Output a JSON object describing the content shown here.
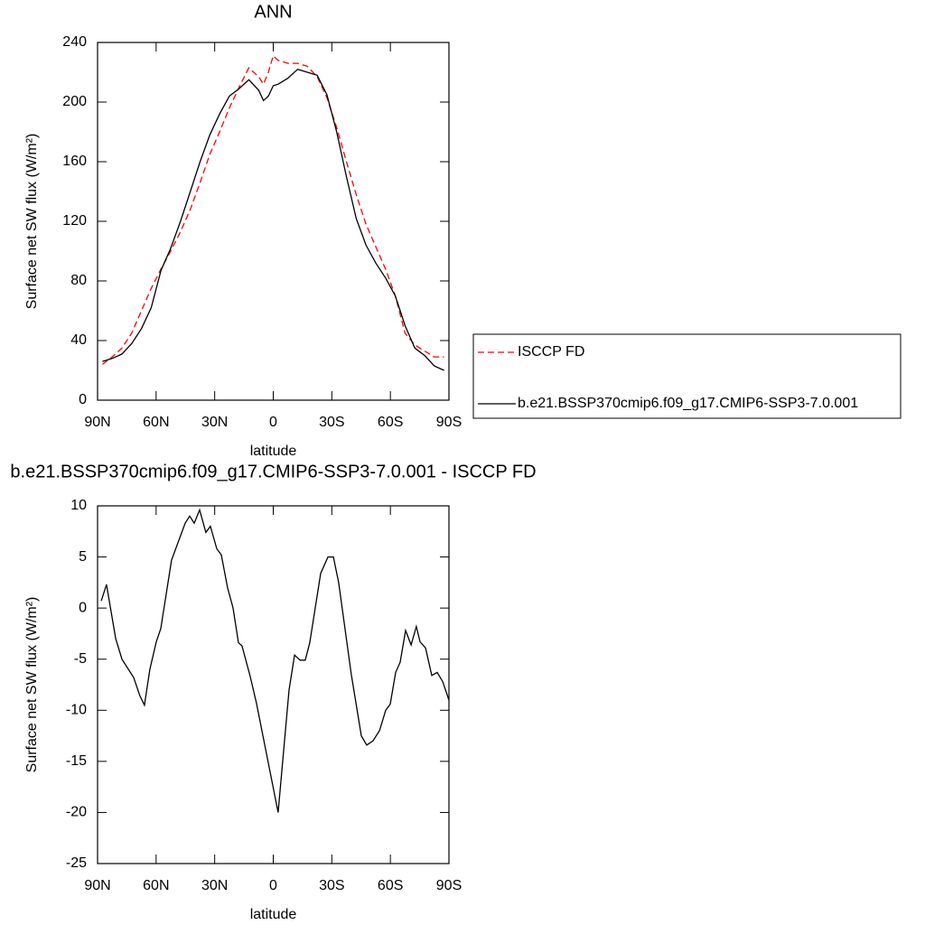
{
  "chart_data": [
    {
      "type": "line",
      "title": "ANN",
      "x_label": "latitude",
      "y_label": "Surface net SW flux (W/m²)",
      "xlim": [
        90,
        -90
      ],
      "xticks": [
        {
          "value": 90,
          "label": "90N"
        },
        {
          "value": 60,
          "label": "60N"
        },
        {
          "value": 30,
          "label": "30N"
        },
        0,
        {
          "value": -30,
          "label": "30S"
        },
        {
          "value": -60,
          "label": "60S"
        },
        {
          "value": -90,
          "label": "90S"
        }
      ],
      "ylim": [
        0,
        240
      ],
      "yticks": [
        0,
        40,
        80,
        120,
        160,
        200,
        240
      ],
      "legend": "outside-right",
      "series": [
        {
          "name": "ISCCP FD",
          "color": "#ff0000",
          "dash": true,
          "x": [
            87.5,
            82.5,
            77.5,
            72.5,
            67.5,
            62.5,
            57.5,
            52.5,
            47.5,
            42.5,
            37.5,
            32.5,
            27.5,
            22.5,
            17.5,
            12.5,
            7.5,
            5,
            2.5,
            0,
            -2.5,
            -7.5,
            -12.5,
            -17.5,
            -22.5,
            -27.5,
            -32.5,
            -37.5,
            -42.5,
            -47.5,
            -52.5,
            -57.5,
            -62.5,
            -67.5,
            -72.5,
            -77.5,
            -82.5,
            -87.5
          ],
          "values": [
            24,
            29,
            35,
            45,
            60,
            75,
            88,
            100,
            113,
            128,
            146,
            165,
            180,
            196,
            210,
            223,
            217,
            212,
            220,
            231,
            228,
            226,
            226,
            224,
            217,
            203,
            183,
            160,
            138,
            118,
            103,
            88,
            70,
            45,
            37,
            33,
            29,
            29
          ]
        },
        {
          "name": "b.e21.BSSP370cmip6.f09_g17.CMIP6-SSP3-7.0.001",
          "color": "#000000",
          "dash": false,
          "x": [
            87.5,
            82.5,
            77.5,
            72.5,
            67.5,
            62.5,
            57.5,
            52.5,
            47.5,
            42.5,
            37.5,
            32.5,
            27.5,
            22.5,
            17.5,
            12.5,
            7.5,
            5,
            2.5,
            0,
            -2.5,
            -7.5,
            -12.5,
            -17.5,
            -22.5,
            -27.5,
            -32.5,
            -37.5,
            -42.5,
            -47.5,
            -52.5,
            -57.5,
            -62.5,
            -67.5,
            -72.5,
            -77.5,
            -82.5,
            -87.5
          ],
          "values": [
            26,
            28,
            31,
            38,
            48,
            62,
            87,
            102,
            120,
            140,
            160,
            178,
            192,
            204,
            209,
            215,
            208,
            201,
            204,
            211,
            212,
            216,
            222,
            220,
            218,
            205,
            180,
            150,
            122,
            104,
            92,
            82,
            70,
            50,
            35,
            30,
            23,
            20
          ]
        }
      ]
    },
    {
      "type": "line",
      "title": "b.e21.BSSP370cmip6.f09_g17.CMIP6-SSP3-7.0.001 - ISCCP FD",
      "x_label": "latitude",
      "y_label": "Surface net SW flux (W/m²)",
      "xlim": [
        90,
        -90
      ],
      "xticks": [
        {
          "value": 90,
          "label": "90N"
        },
        {
          "value": 60,
          "label": "60N"
        },
        {
          "value": 30,
          "label": "30N"
        },
        0,
        {
          "value": -30,
          "label": "30S"
        },
        {
          "value": -60,
          "label": "60S"
        },
        {
          "value": -90,
          "label": "90S"
        }
      ],
      "ylim": [
        -25,
        10
      ],
      "yticks": [
        -25,
        -20,
        -15,
        -10,
        -5,
        0,
        5,
        10
      ],
      "series": [
        {
          "color": "#000000",
          "dash": false,
          "x": [
            88.1,
            85.4,
            80.7,
            77.5,
            71.5,
            68.3,
            66,
            63.2,
            59.9,
            57.6,
            52.1,
            45.1,
            42.8,
            40.5,
            37.7,
            34.5,
            32.2,
            28.9,
            26.6,
            23.4,
            20.6,
            17.8,
            16,
            11.8,
            8.6,
            -2.5,
            -8.1,
            -10.9,
            -13.7,
            -16.4,
            -18.7,
            -24.3,
            -28,
            -30.8,
            -33.5,
            -40,
            -45.1,
            -47.9,
            -51.1,
            -54.4,
            -57.6,
            -59.9,
            -62.7,
            -65,
            -67.8,
            -70.6,
            -73.3,
            -75.2,
            -78,
            -81.2,
            -84,
            -86.8,
            -90
          ],
          "values": [
            0.7,
            2.3,
            -3,
            -5,
            -6.8,
            -8.6,
            -9.5,
            -6,
            -3.3,
            -2,
            4.7,
            8.3,
            9,
            8.3,
            9.6,
            7.4,
            8,
            5.8,
            5.2,
            2,
            0,
            -3.4,
            -3.7,
            -6.7,
            -9.3,
            -20,
            -8,
            -4.6,
            -5.1,
            -5.1,
            -3.4,
            3.4,
            5,
            5,
            2.5,
            -6.5,
            -12.5,
            -13.4,
            -13,
            -12,
            -10,
            -9.4,
            -6.3,
            -5.3,
            -2.2,
            -3.6,
            -1.8,
            -3.3,
            -3.9,
            -6.6,
            -6.3,
            -7.2,
            -9
          ]
        }
      ]
    }
  ]
}
